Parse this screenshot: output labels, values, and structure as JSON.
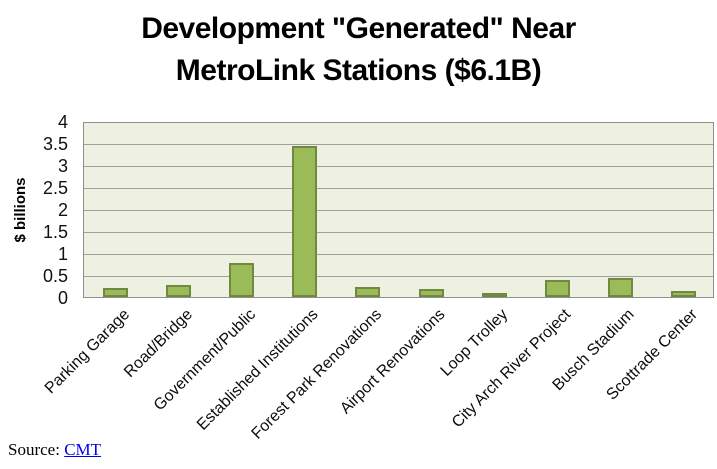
{
  "title": "Development \"Generated\" Near\nMetroLink Stations ($6.1B)",
  "source": {
    "prefix": "Source: ",
    "link_label": "CMT"
  },
  "chart_data": {
    "type": "bar",
    "title": "Development \"Generated\" Near MetroLink Stations ($6.1B)",
    "categories": [
      "Parking Garage",
      "Road/Bridge",
      "Government/Public",
      "Established Institutions",
      "Forest Park Renovations",
      "Airport Renovations",
      "Loop Trolley",
      "City Arch River Project",
      "Busch Stadium",
      "Scottrade Center"
    ],
    "values": [
      0.21,
      0.27,
      0.78,
      3.43,
      0.22,
      0.18,
      0.05,
      0.38,
      0.44,
      0.14
    ],
    "xlabel": "",
    "ylabel": "$ billions",
    "ylim": [
      0,
      4
    ],
    "yticks": [
      0,
      0.5,
      1,
      1.5,
      2,
      2.5,
      3,
      3.5,
      4
    ],
    "ytick_labels": [
      "0",
      "0.5",
      "1",
      "1.5",
      "2",
      "2.5",
      "3",
      "3.5",
      "4"
    ],
    "grid": true,
    "legend": false,
    "x_label_rotation_deg": 45,
    "colors": {
      "bar_fill": "#9bbb59",
      "bar_border": "#71893f",
      "plot_background": "#eef1e2",
      "gridline": "#9e9e9e",
      "plot_border": "#8f8f8f",
      "title_text": "#000000",
      "link": "#0000ee"
    }
  }
}
